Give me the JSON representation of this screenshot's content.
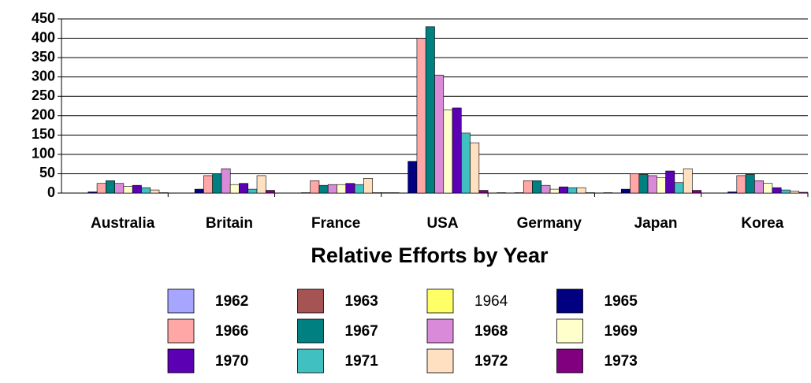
{
  "chart_data": {
    "type": "bar",
    "title": "Relative Efforts by Year",
    "categories": [
      "Australia",
      "Britain",
      "France",
      "USA",
      "Germany",
      "Japan",
      "Korea"
    ],
    "series": [
      {
        "name": "1962",
        "color": "#a6a6ff",
        "values": [
          0,
          0,
          0,
          1,
          0,
          0,
          0
        ]
      },
      {
        "name": "1963",
        "color": "#a65353",
        "values": [
          0,
          0,
          0,
          1,
          1,
          1,
          0
        ]
      },
      {
        "name": "1964",
        "color": "#ffff66",
        "values": [
          0,
          0,
          0,
          0,
          0,
          0,
          0
        ]
      },
      {
        "name": "1965",
        "color": "#000080",
        "values": [
          3,
          10,
          1,
          82,
          1,
          10,
          3
        ]
      },
      {
        "name": "1966",
        "color": "#ffa6a6",
        "values": [
          25,
          45,
          32,
          400,
          32,
          50,
          45
        ]
      },
      {
        "name": "1967",
        "color": "#008080",
        "values": [
          32,
          50,
          20,
          430,
          32,
          48,
          48
        ]
      },
      {
        "name": "1968",
        "color": "#d98ad9",
        "values": [
          25,
          63,
          22,
          305,
          20,
          45,
          32
        ]
      },
      {
        "name": "1969",
        "color": "#ffffcc",
        "values": [
          17,
          22,
          22,
          215,
          10,
          40,
          25
        ]
      },
      {
        "name": "1970",
        "color": "#5c00b3",
        "values": [
          20,
          25,
          25,
          220,
          16,
          57,
          14
        ]
      },
      {
        "name": "1971",
        "color": "#40c0c0",
        "values": [
          14,
          10,
          22,
          155,
          14,
          27,
          8
        ]
      },
      {
        "name": "1972",
        "color": "#ffe0c0",
        "values": [
          8,
          45,
          38,
          130,
          14,
          63,
          5
        ]
      },
      {
        "name": "1973",
        "color": "#800080",
        "values": [
          1,
          7,
          1,
          7,
          1,
          7,
          2
        ]
      }
    ],
    "ylim": [
      0,
      450
    ],
    "yticks": [
      0,
      50,
      100,
      150,
      200,
      250,
      300,
      350,
      400,
      450
    ],
    "grid": true
  }
}
